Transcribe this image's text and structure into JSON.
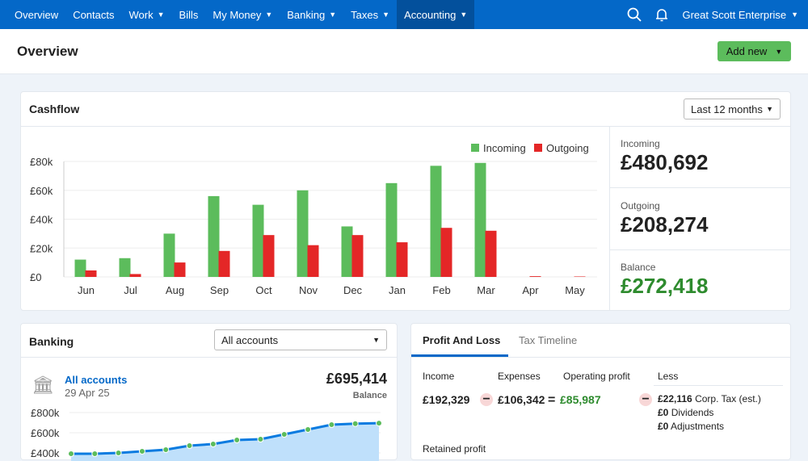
{
  "nav": {
    "items": [
      {
        "label": "Overview"
      },
      {
        "label": "Contacts"
      },
      {
        "label": "Work",
        "dropdown": true
      },
      {
        "label": "Bills"
      },
      {
        "label": "My Money",
        "dropdown": true
      },
      {
        "label": "Banking",
        "dropdown": true
      },
      {
        "label": "Taxes",
        "dropdown": true
      },
      {
        "label": "Accounting",
        "dropdown": true,
        "active": true
      }
    ],
    "org": "Great Scott Enterprise",
    "icons": [
      "search-icon",
      "bell-icon"
    ]
  },
  "header": {
    "title": "Overview",
    "add_new": "Add new"
  },
  "cashflow": {
    "title": "Cashflow",
    "period": "Last 12 months",
    "incoming_label": "Incoming",
    "incoming": "£480,692",
    "outgoing_label": "Outgoing",
    "outgoing": "£208,274",
    "balance_label": "Balance",
    "balance": "£272,418"
  },
  "banking": {
    "title": "Banking",
    "account_select": "All accounts",
    "account_link": "All accounts",
    "date": "29 Apr 25",
    "balance": "£695,414",
    "balance_label": "Balance"
  },
  "pl": {
    "tabs": [
      "Profit And Loss",
      "Tax Timeline"
    ],
    "income_label": "Income",
    "expenses_label": "Expenses",
    "operating_label": "Operating profit",
    "less_label": "Less",
    "income": "£192,329",
    "expenses": "£106,342",
    "operating": "£85,987",
    "corp_tax": "£22,116",
    "corp_tax_label": "Corp. Tax (est.)",
    "dividends": "£0",
    "dividends_label": "Dividends",
    "adjustments": "£0",
    "adjustments_label": "Adjustments",
    "retained_label": "Retained profit"
  },
  "colors": {
    "nav": "#0468c8",
    "incoming": "#5cbc5c",
    "outgoing": "#e42727",
    "positive": "#2e8b2e",
    "link": "#0468c8"
  },
  "chart_data": [
    {
      "type": "bar",
      "categories": [
        "Jun",
        "Jul",
        "Aug",
        "Sep",
        "Oct",
        "Nov",
        "Dec",
        "Jan",
        "Feb",
        "Mar",
        "Apr",
        "May"
      ],
      "series": [
        {
          "name": "Incoming",
          "values": [
            12000,
            13000,
            30000,
            56000,
            50000,
            60000,
            35000,
            65000,
            77000,
            79000,
            0,
            0
          ]
        },
        {
          "name": "Outgoing",
          "values": [
            4500,
            2000,
            10000,
            18000,
            29000,
            22000,
            29000,
            24000,
            34000,
            32000,
            500,
            300
          ]
        }
      ],
      "yticks": [
        "£0",
        "£20k",
        "£40k",
        "£60k",
        "£80k"
      ],
      "ylim": [
        0,
        80000
      ],
      "legend": "top-right",
      "grid": true
    },
    {
      "type": "area",
      "values": [
        392000,
        392000,
        400000,
        416000,
        432000,
        472000,
        488000,
        528000,
        536000,
        584000,
        632000,
        680000,
        690000,
        695414
      ],
      "yticks": [
        "£400k",
        "£600k",
        "£800k"
      ]
    }
  ]
}
